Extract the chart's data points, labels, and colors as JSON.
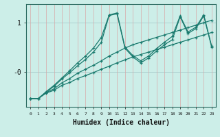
{
  "xlabel": "Humidex (Indice chaleur)",
  "bg_color": "#cceee8",
  "grid_color_v": "#d8a8a8",
  "grid_color_h": "#a8cccc",
  "line_color": "#1a7a6e",
  "xlim": [
    -0.5,
    23.5
  ],
  "ylim": [
    -0.72,
    1.38
  ],
  "yticks": [
    0.0,
    1.0
  ],
  "ytick_labels": [
    "-0",
    "1"
  ],
  "xticks": [
    0,
    1,
    2,
    3,
    4,
    5,
    6,
    7,
    8,
    9,
    10,
    11,
    12,
    13,
    14,
    15,
    16,
    17,
    18,
    19,
    20,
    21,
    22,
    23
  ],
  "series": [
    {
      "x": [
        0,
        1,
        2,
        3,
        4,
        5,
        6,
        7,
        8,
        9,
        10,
        11,
        12,
        13,
        14,
        15,
        16,
        17,
        18,
        19,
        20,
        21,
        22,
        23
      ],
      "y": [
        -0.55,
        -0.55,
        -0.44,
        -0.38,
        -0.28,
        -0.22,
        -0.14,
        -0.08,
        -0.02,
        0.05,
        0.11,
        0.18,
        0.24,
        0.3,
        0.35,
        0.4,
        0.45,
        0.5,
        0.55,
        0.6,
        0.65,
        0.7,
        0.75,
        0.8
      ]
    },
    {
      "x": [
        0,
        1,
        2,
        3,
        4,
        5,
        6,
        7,
        8,
        9,
        10,
        11,
        12,
        13,
        14,
        15,
        16,
        17,
        18,
        19,
        20,
        21,
        22,
        23
      ],
      "y": [
        -0.55,
        -0.55,
        -0.43,
        -0.35,
        -0.23,
        -0.14,
        -0.03,
        0.05,
        0.13,
        0.22,
        0.32,
        0.4,
        0.48,
        0.55,
        0.6,
        0.65,
        0.7,
        0.75,
        0.8,
        0.85,
        0.9,
        0.95,
        1.0,
        1.05
      ]
    },
    {
      "x": [
        0,
        1,
        2,
        3,
        4,
        5,
        6,
        7,
        8,
        9,
        10,
        11,
        12,
        13,
        14,
        15,
        16,
        17,
        18,
        19,
        20,
        21,
        22,
        23
      ],
      "y": [
        -0.55,
        -0.55,
        -0.42,
        -0.3,
        -0.15,
        -0.02,
        0.12,
        0.25,
        0.4,
        0.6,
        1.15,
        1.18,
        0.48,
        0.3,
        0.18,
        0.28,
        0.42,
        0.55,
        0.65,
        1.12,
        0.78,
        0.88,
        1.14,
        0.5
      ]
    },
    {
      "x": [
        0,
        1,
        2,
        3,
        4,
        5,
        6,
        7,
        8,
        9,
        10,
        11,
        12,
        13,
        14,
        15,
        16,
        17,
        18,
        19,
        20,
        21,
        22,
        23
      ],
      "y": [
        -0.55,
        -0.55,
        -0.41,
        -0.28,
        -0.13,
        0.02,
        0.18,
        0.32,
        0.48,
        0.7,
        1.16,
        1.2,
        0.5,
        0.33,
        0.22,
        0.32,
        0.47,
        0.6,
        0.72,
        1.14,
        0.81,
        0.91,
        1.16,
        0.52
      ]
    }
  ]
}
